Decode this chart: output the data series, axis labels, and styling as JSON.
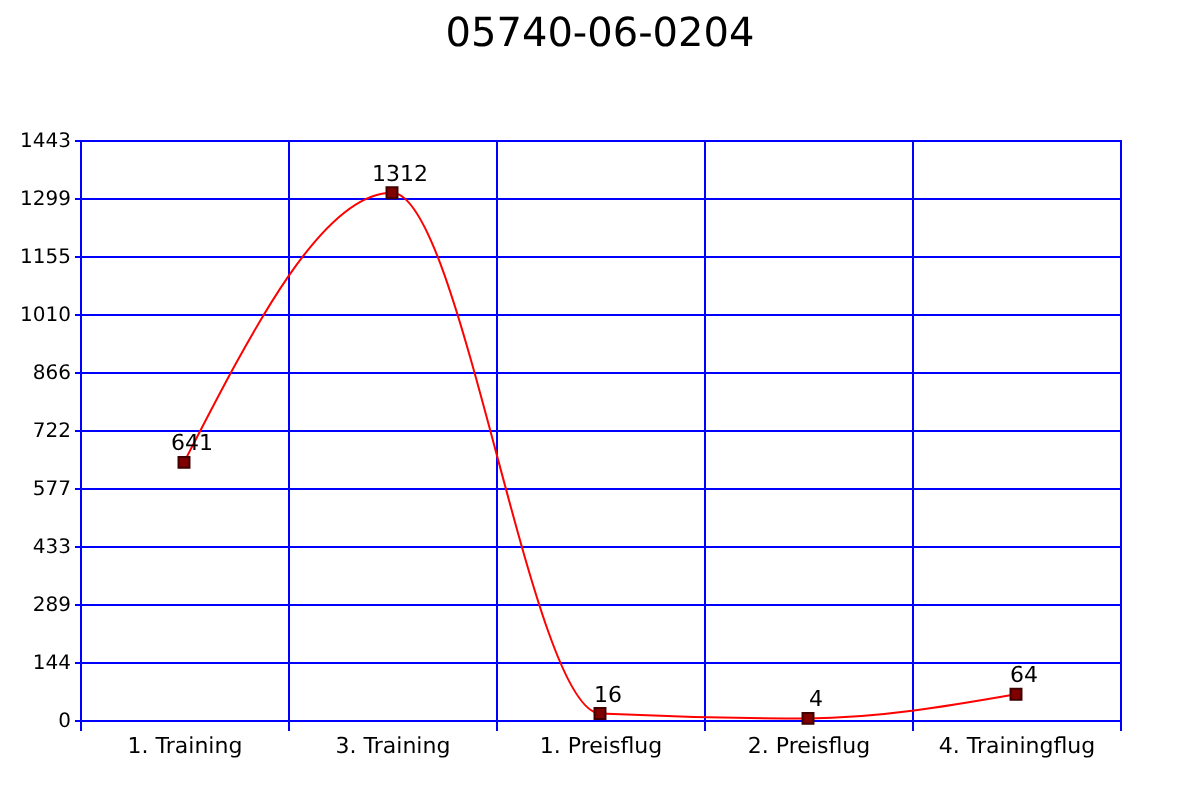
{
  "chart_data": {
    "type": "line",
    "title": "05740-06-0204",
    "categories": [
      "1. Training",
      "3. Training",
      "1. Preisflug",
      "2. Preisflug",
      "4. Trainingflug"
    ],
    "series": [
      {
        "color": "#ff0000",
        "values": [
          641,
          1312,
          16,
          4,
          64
        ]
      }
    ],
    "ylim": [
      0,
      1443
    ],
    "yticks": [
      0,
      144,
      289,
      433,
      577,
      722,
      866,
      1010,
      1155,
      1299,
      1443
    ],
    "grid": true,
    "marker": "square",
    "line_style": "solid",
    "data_labels": true
  }
}
